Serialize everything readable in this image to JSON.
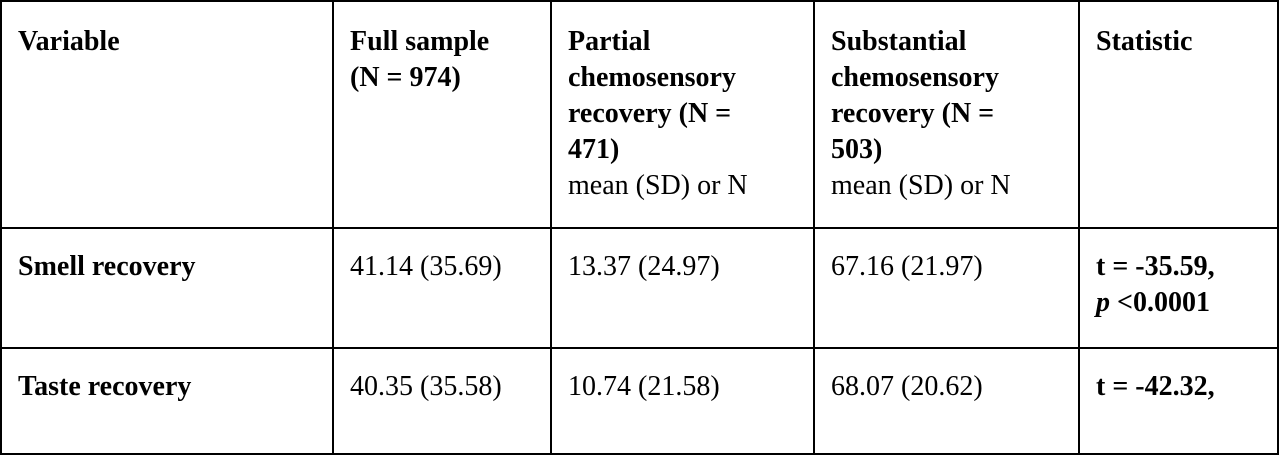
{
  "table": {
    "header": {
      "variable": "Variable",
      "full_sample": {
        "title": "Full sample",
        "n": "(N = 974)"
      },
      "partial": {
        "line1": "Partial",
        "line2": "chemosensory",
        "line3": "recovery (N =",
        "line4": "471)",
        "sub": "mean (SD) or N"
      },
      "substantial": {
        "line1": "Substantial",
        "line2": "chemosensory",
        "line3": "recovery (N =",
        "line4": "503)",
        "sub": "mean (SD) or N"
      },
      "statistic": "Statistic"
    },
    "rows": [
      {
        "variable": "Smell recovery",
        "full": "41.14 (35.69)",
        "partial": "13.37 (24.97)",
        "substantial": "67.16 (21.97)",
        "stat_line1": "t = -35.59,",
        "stat_p": "p",
        "stat_p_rest": " <0.0001"
      },
      {
        "variable": "Taste recovery",
        "full": "40.35 (35.58)",
        "partial": "10.74 (21.58)",
        "substantial": "68.07 (20.62)",
        "stat_line1": "t = -42.32,"
      }
    ]
  }
}
